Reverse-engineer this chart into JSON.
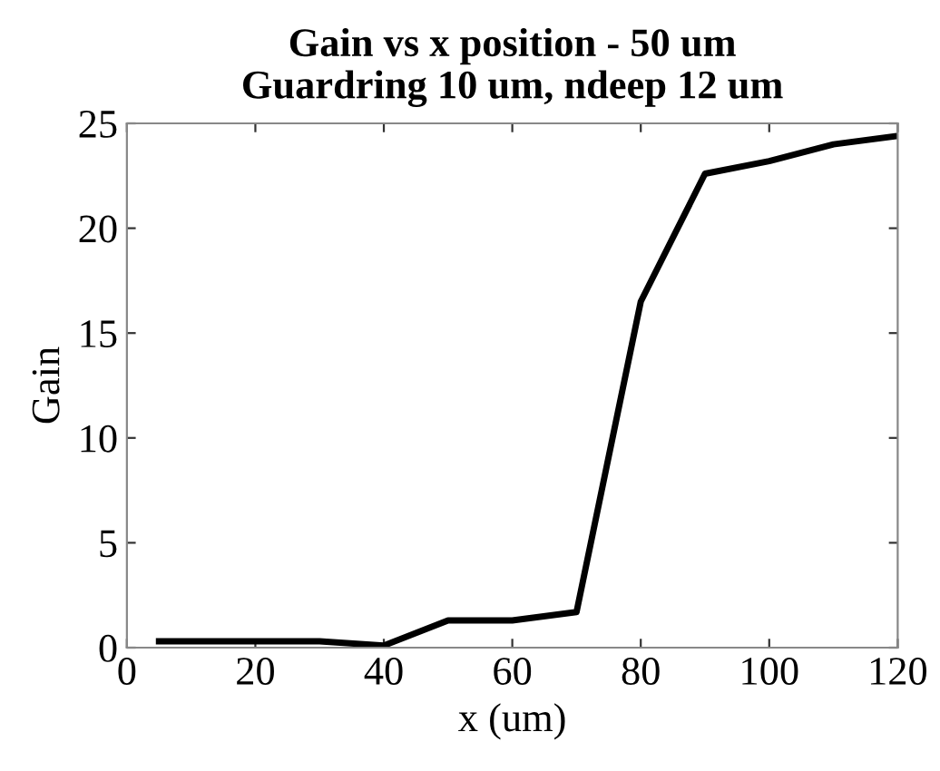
{
  "chart_data": {
    "type": "line",
    "title": "Gain vs x position - 50 um\nGuardring 10 um, ndeep 12 um",
    "xlabel": "x (um)",
    "ylabel": "Gain",
    "x": [
      5,
      20,
      30,
      40,
      50,
      60,
      70,
      80,
      90,
      100,
      110,
      120
    ],
    "series": [
      {
        "color": "#000000",
        "values": [
          0.3,
          0.3,
          0.3,
          0.1,
          1.3,
          1.3,
          1.7,
          16.5,
          22.6,
          23.2,
          24.0,
          24.4
        ]
      }
    ],
    "xlim": [
      0,
      120
    ],
    "xticks": [
      0,
      20,
      40,
      60,
      80,
      100,
      120
    ],
    "ylim": [
      0,
      25
    ],
    "yticks": [
      0,
      5,
      10,
      15,
      20,
      25
    ],
    "grid": false,
    "legend": false,
    "marker": "none",
    "line_style": "solid"
  }
}
